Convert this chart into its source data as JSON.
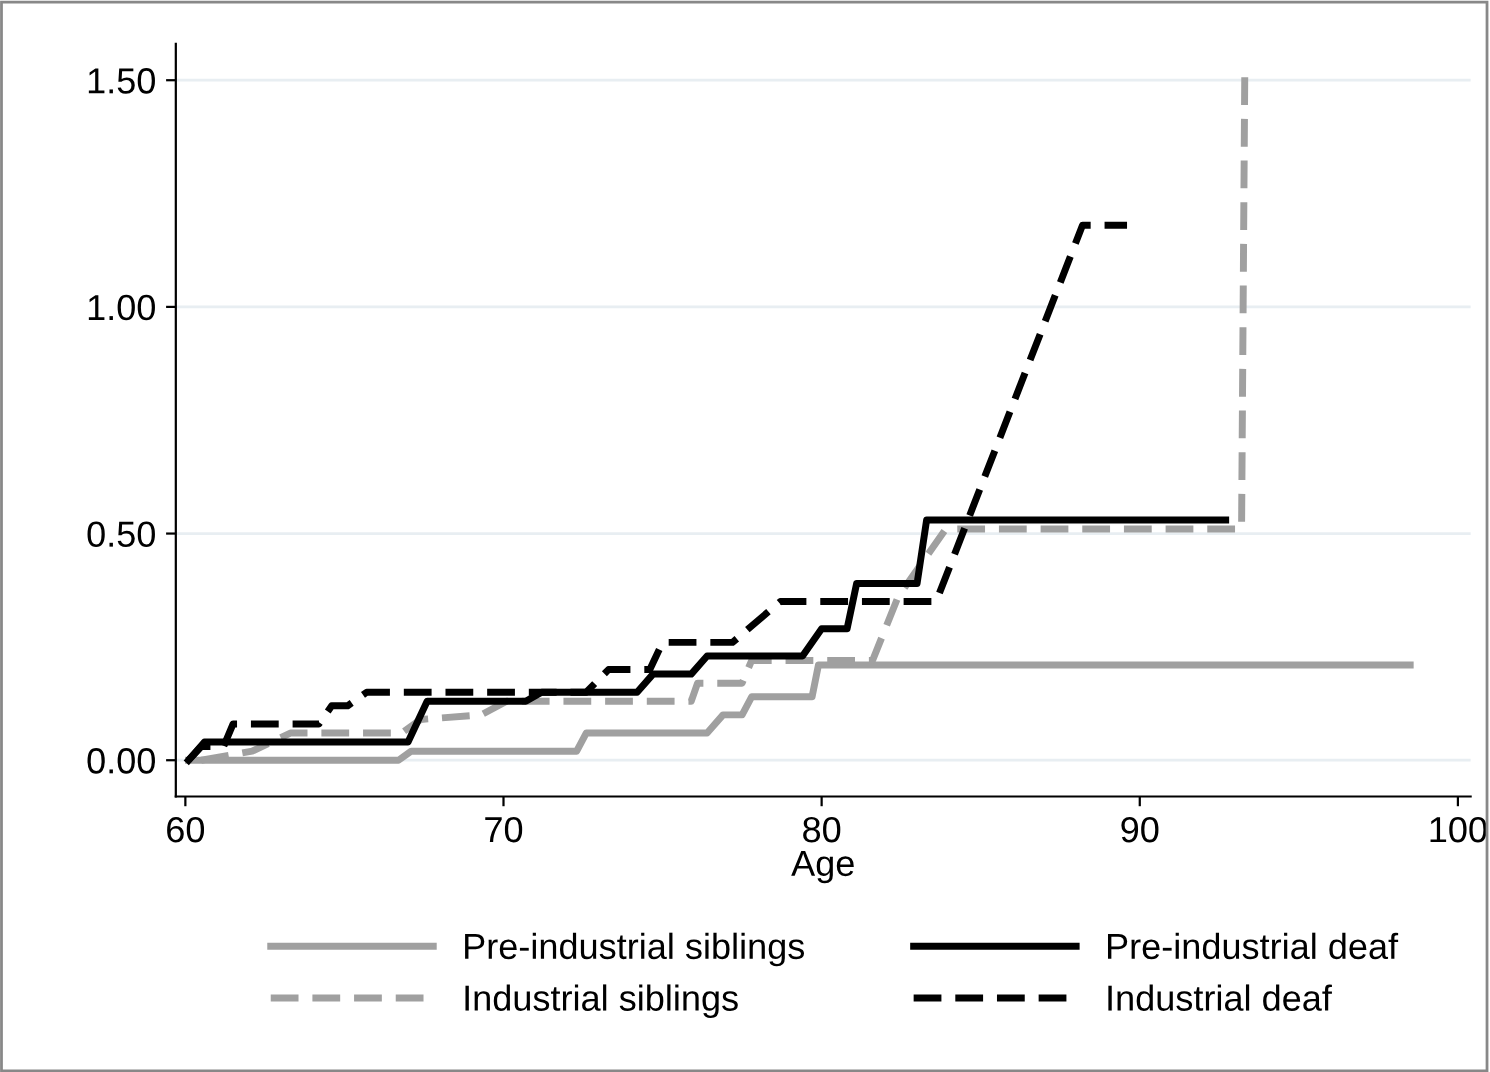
{
  "chart_data": {
    "type": "line",
    "xlabel": "Age",
    "xlim": [
      59.7,
      100.4
    ],
    "ylim": [
      -0.08,
      1.58
    ],
    "xticks": [
      60,
      70,
      80,
      90,
      100
    ],
    "yticks": [
      {
        "value": 0,
        "label": "0.00"
      },
      {
        "value": 0.5,
        "label": "0.50"
      },
      {
        "value": 1,
        "label": "1.00"
      },
      {
        "value": 1.5,
        "label": "1.50"
      }
    ],
    "grid": "y",
    "legend": "bottom",
    "marker": "none",
    "series": [
      {
        "name": "Pre-industrial siblings",
        "color": "#a0a0a0",
        "line_style": "solid",
        "x": [
          60.1,
          66.7,
          67.1,
          72.3,
          72.6,
          76.4,
          76.9,
          77.5,
          77.8,
          79.7,
          79.9,
          98.5
        ],
        "values": [
          0,
          0,
          0.02,
          0.02,
          0.06,
          0.06,
          0.1,
          0.1,
          0.14,
          0.14,
          0.21,
          0.21
        ]
      },
      {
        "name": "Industrial siblings",
        "color": "#a0a0a0",
        "line_style": "dashed",
        "x": [
          60.5,
          62.1,
          63.3,
          66.8,
          67.4,
          69.3,
          70.1,
          75.9,
          76.1,
          77.5,
          77.8,
          81.6,
          82.4,
          83.9,
          93.2,
          93.3
        ],
        "values": [
          0,
          0.02,
          0.06,
          0.06,
          0.09,
          0.1,
          0.13,
          0.13,
          0.17,
          0.17,
          0.22,
          0.22,
          0.36,
          0.51,
          0.51,
          1.51
        ]
      },
      {
        "name": "Pre-industrial deaf",
        "color": "#000000",
        "line_style": "solid",
        "x": [
          60.1,
          60.6,
          67.0,
          67.6,
          70.7,
          71.2,
          74.2,
          74.7,
          75.9,
          76.4,
          79.4,
          80.0,
          80.8,
          81.1,
          83.0,
          83.3,
          92.7
        ],
        "values": [
          0,
          0.04,
          0.04,
          0.13,
          0.13,
          0.15,
          0.15,
          0.19,
          0.19,
          0.23,
          0.23,
          0.29,
          0.29,
          0.39,
          0.39,
          0.53,
          0.53
        ]
      },
      {
        "name": "Industrial deaf",
        "color": "#000000",
        "line_style": "dashed",
        "x": [
          60.1,
          60.5,
          61.2,
          61.5,
          64.2,
          64.6,
          65.1,
          65.7,
          72.6,
          73.3,
          74.6,
          75.0,
          77.2,
          78.7,
          83.6,
          88.2,
          89.6
        ],
        "values": [
          0,
          0.03,
          0.03,
          0.08,
          0.08,
          0.12,
          0.12,
          0.15,
          0.15,
          0.2,
          0.2,
          0.26,
          0.26,
          0.35,
          0.35,
          1.18,
          1.18
        ]
      }
    ]
  }
}
